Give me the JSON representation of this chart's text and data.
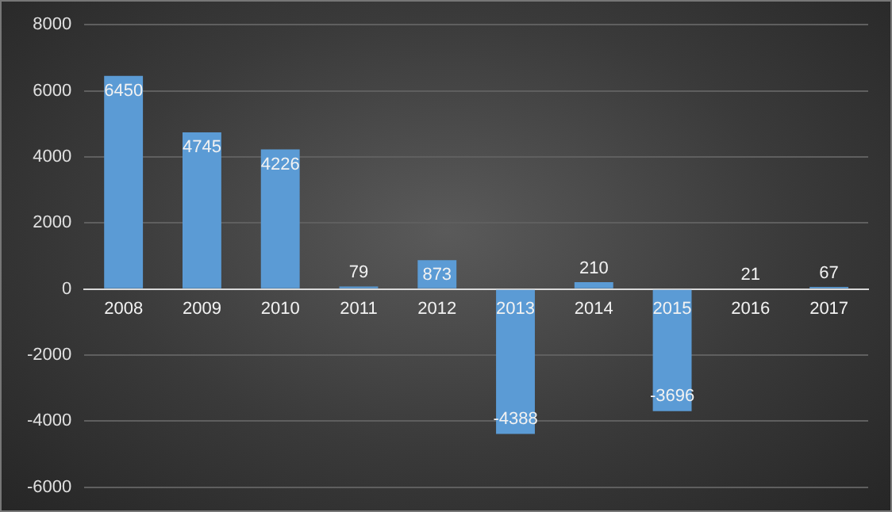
{
  "chart_data": {
    "type": "bar",
    "categories": [
      "2008",
      "2009",
      "2010",
      "2011",
      "2012",
      "2013",
      "2014",
      "2015",
      "2016",
      "2017"
    ],
    "values": [
      6450,
      4745,
      4226,
      79,
      873,
      -4388,
      210,
      -3696,
      21,
      67
    ],
    "color": "#5b9bd5",
    "ylim": [
      -6000,
      8000
    ],
    "yticks": [
      -6000,
      -4000,
      -2000,
      0,
      2000,
      4000,
      6000,
      8000
    ],
    "grid": "y",
    "data_labels": true,
    "legend": false
  }
}
